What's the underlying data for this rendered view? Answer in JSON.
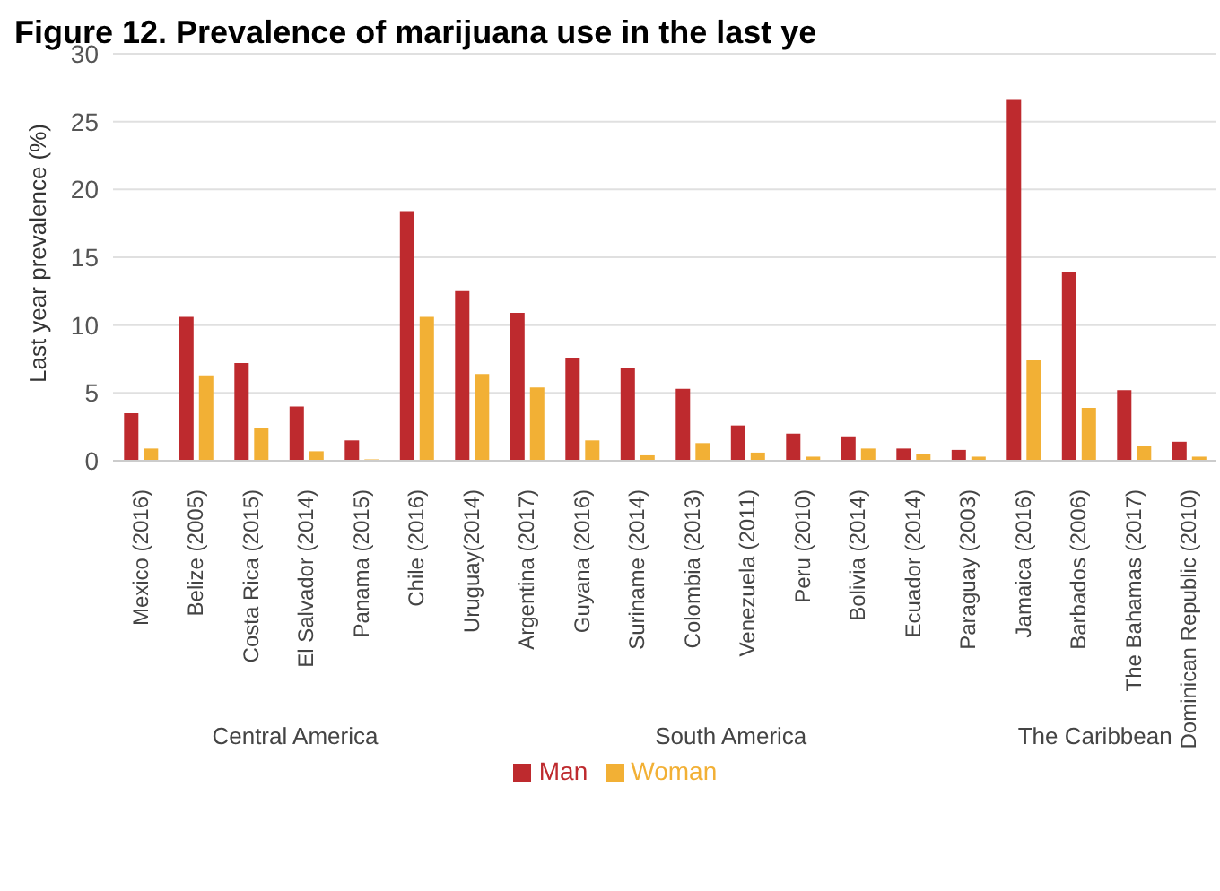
{
  "chart_data": {
    "type": "bar",
    "title": "Figure 12. Prevalence of marijuana use in the last ye",
    "ylabel": "Last year prevalence (%)",
    "categories": [
      "Mexico (2016)",
      "Belize (2005)",
      "Costa Rica (2015)",
      "El Salvador (2014)",
      "Panama (2015)",
      "Chile (2016)",
      "Uruguay(2014)",
      "Argentina (2017)",
      "Guyana (2016)",
      "Suriname (2014)",
      "Colombia (2013)",
      "Venezuela (2011)",
      "Peru (2010)",
      "Bolivia (2014)",
      "Ecuador (2014)",
      "Paraguay (2003)",
      "Jamaica (2016)",
      "Barbados (2006)",
      "The Bahamas (2017)",
      "Dominican Republic (2010)"
    ],
    "series": [
      {
        "name": "Man",
        "color": "#be2a2e",
        "values": [
          3.5,
          10.6,
          7.2,
          4.0,
          1.5,
          18.4,
          12.5,
          10.9,
          7.6,
          6.8,
          5.3,
          2.6,
          2.0,
          1.8,
          0.9,
          0.8,
          26.6,
          13.9,
          5.2,
          1.4
        ]
      },
      {
        "name": "Woman",
        "color": "#f2b035",
        "values": [
          0.9,
          6.3,
          2.4,
          0.7,
          0.1,
          10.6,
          6.4,
          5.4,
          1.5,
          0.4,
          1.3,
          0.6,
          0.3,
          0.9,
          0.5,
          0.3,
          7.4,
          3.9,
          1.1,
          0.3
        ]
      }
    ],
    "ylim": [
      0,
      30
    ],
    "yticks": [
      0,
      5,
      10,
      15,
      20,
      25,
      30
    ],
    "grid": "y",
    "legend": "bottom",
    "annotations": [
      "Central America",
      "South America",
      "The Caribbean"
    ]
  }
}
